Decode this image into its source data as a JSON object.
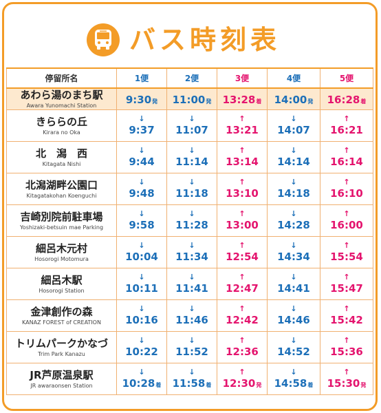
{
  "title": "バス時刻表",
  "headers": {
    "stop": "停留所名",
    "services": [
      "1便",
      "2便",
      "3便",
      "4便",
      "5便"
    ]
  },
  "tags": {
    "depart": "発",
    "arrive": "着"
  },
  "arrows": {
    "down": "↓",
    "up": "↑"
  },
  "colors": {
    "accent": "#f39c27",
    "blue": "#1c6fb8",
    "pink": "#e4146e",
    "highlight": "#fde9cf"
  },
  "stops": [
    {
      "name": "あわら湯のまち駅",
      "romaji": "Awara Yunomachi Station",
      "times": [
        "9:30",
        "11:00",
        "13:28",
        "14:00",
        "16:28"
      ]
    },
    {
      "name": "きららの丘",
      "romaji": "Kirara no Oka",
      "times": [
        "9:37",
        "11:07",
        "13:21",
        "14:07",
        "16:21"
      ]
    },
    {
      "name": "北　潟　西",
      "romaji": "Kitagata Nishi",
      "times": [
        "9:44",
        "11:14",
        "13:14",
        "14:14",
        "16:14"
      ]
    },
    {
      "name": "北潟湖畔公園口",
      "romaji": "Kitagatakohan Koenguchi",
      "times": [
        "9:48",
        "11:18",
        "13:10",
        "14:18",
        "16:10"
      ]
    },
    {
      "name": "吉崎別院前駐車場",
      "romaji": "Yoshizaki-betsuin mae Parking",
      "times": [
        "9:58",
        "11:28",
        "13:00",
        "14:28",
        "16:00"
      ]
    },
    {
      "name": "細呂木元村",
      "romaji": "Hosorogi Motomura",
      "times": [
        "10:04",
        "11:34",
        "12:54",
        "14:34",
        "15:54"
      ]
    },
    {
      "name": "細呂木駅",
      "romaji": "Hosorogi Station",
      "times": [
        "10:11",
        "11:41",
        "12:47",
        "14:41",
        "15:47"
      ]
    },
    {
      "name": "金津創作の森",
      "romaji": "KANAZ FOREST of CREATION",
      "times": [
        "10:16",
        "11:46",
        "12:42",
        "14:46",
        "15:42"
      ]
    },
    {
      "name": "トリムパークかなづ",
      "romaji": "Trim Park Kanazu",
      "times": [
        "10:22",
        "11:52",
        "12:36",
        "14:52",
        "15:36"
      ]
    },
    {
      "name": "JR芦原温泉駅",
      "romaji": "JR awaraonsen Station",
      "times": [
        "10:28",
        "11:58",
        "12:30",
        "14:58",
        "15:30"
      ]
    }
  ]
}
